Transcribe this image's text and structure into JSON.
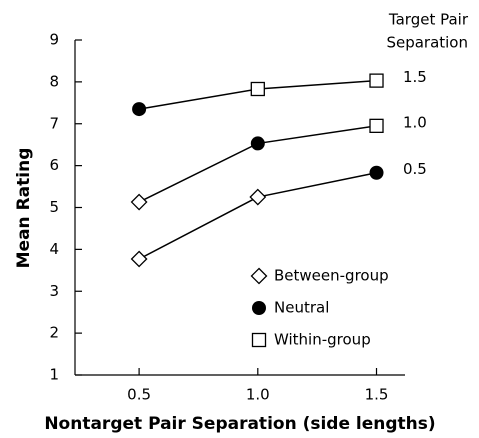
{
  "chart_data": {
    "type": "line",
    "x_label": "Nontarget Pair Separation (side lengths)",
    "y_label": "Mean Rating",
    "x": [
      0.5,
      1.0,
      1.5
    ],
    "xlim": [
      0.23,
      1.62
    ],
    "xticks": [
      0.5,
      {
        "value": 1.0,
        "label": "1.0"
      },
      1.5
    ],
    "ylim": [
      1,
      9
    ],
    "yticks": [
      1,
      2,
      3,
      4,
      5,
      6,
      7,
      8,
      9
    ],
    "legend_title": [
      "Target Pair",
      "Separation"
    ],
    "marker_legend": [
      {
        "name": "Between-group",
        "shape": "diamond"
      },
      {
        "name": "Neutral",
        "shape": "circle"
      },
      {
        "name": "Within-group",
        "shape": "square"
      }
    ],
    "series": [
      {
        "name": "1.5",
        "color": "#000000",
        "values": [
          7.35,
          7.83,
          8.03
        ],
        "markers": [
          1,
          2,
          2
        ]
      },
      {
        "name": "1.0",
        "color": "#000000",
        "values": [
          5.13,
          6.53,
          6.95
        ],
        "markers": [
          0,
          1,
          2
        ]
      },
      {
        "name": "0.5",
        "color": "#000000",
        "values": [
          3.77,
          5.25,
          5.83
        ],
        "markers": [
          0,
          0,
          1
        ]
      }
    ]
  }
}
